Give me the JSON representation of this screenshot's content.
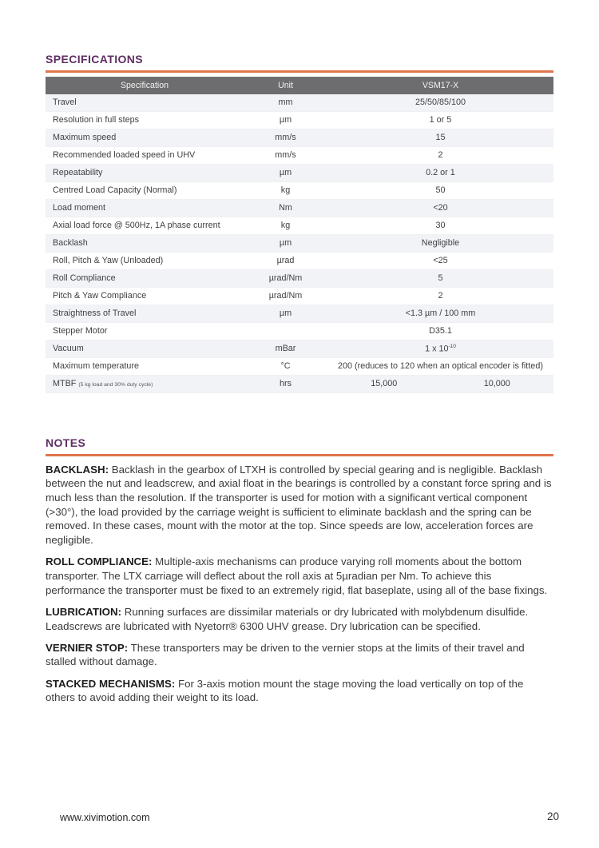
{
  "colors": {
    "accent_purple": "#5e2f62",
    "accent_orange": "#e0764b",
    "table_header_bg": "#6d6d6f",
    "row_alt_bg": "#f1f3f7"
  },
  "specifications": {
    "title": "SPECIFICATIONS",
    "table": {
      "headers": [
        "Specification",
        "Unit",
        "VSM17-X"
      ],
      "rows": [
        {
          "spec": "Travel",
          "unit": "mm",
          "value": "25/50/85/100"
        },
        {
          "spec": "Resolution in full steps",
          "unit": "µm",
          "value": "1 or 5"
        },
        {
          "spec": "Maximum speed",
          "unit": "mm/s",
          "value": "15"
        },
        {
          "spec": "Recommended loaded speed in UHV",
          "unit": "mm/s",
          "value": "2"
        },
        {
          "spec": "Repeatability",
          "unit": "µm",
          "value": "0.2 or 1"
        },
        {
          "spec": "Centred Load Capacity (Normal)",
          "unit": "kg",
          "value": "50"
        },
        {
          "spec": "Load moment",
          "unit": "Nm",
          "value": "<20"
        },
        {
          "spec": "Axial load force @ 500Hz, 1A phase current",
          "unit": "kg",
          "value": "30"
        },
        {
          "spec": "Backlash",
          "unit": "µm",
          "value": "Negligible"
        },
        {
          "spec": "Roll, Pitch & Yaw (Unloaded)",
          "unit": "µrad",
          "value": "<25"
        },
        {
          "spec": "Roll Compliance",
          "unit": "µrad/Nm",
          "value": "5"
        },
        {
          "spec": "Pitch & Yaw Compliance",
          "unit": "µrad/Nm",
          "value": "2"
        },
        {
          "spec": "Straightness of Travel",
          "unit": "µm",
          "value": "<1.3 µm / 100 mm"
        },
        {
          "spec": "Stepper Motor",
          "unit": "",
          "value": "D35.1"
        },
        {
          "spec": "Vacuum",
          "unit": "mBar",
          "value": "1 x 10",
          "value_sup": "-10"
        },
        {
          "spec": "Maximum temperature",
          "unit": "°C",
          "value": "200 (reduces to 120 when an optical encoder is fitted)"
        },
        {
          "spec": "MTBF",
          "spec_note": "(5 kg load and 30% duty cycle)",
          "unit": "hrs",
          "value": "15,000",
          "value2": "10,000"
        }
      ]
    }
  },
  "notes": {
    "title": "NOTES",
    "paragraphs": [
      {
        "label": "BACKLASH:",
        "text": "Backlash in the gearbox of LTXH is controlled by special gearing and is negligible. Backlash between the nut and leadscrew, and axial float in the bearings is controlled by a constant force spring and is much less than the resolution. If the transporter is used for motion with a significant vertical component (>30°), the load provided by the carriage weight is sufficient to eliminate backlash and the spring can be removed. In these cases, mount with the motor at the top. Since speeds are low, acceleration forces are negligible."
      },
      {
        "label": "ROLL COMPLIANCE:",
        "text": "Multiple-axis mechanisms can produce varying roll moments about the bottom transporter. The LTX carriage will deflect about the roll axis at 5µradian per Nm. To achieve this performance the transporter must be fixed to an extremely rigid, flat baseplate, using all of the base fixings."
      },
      {
        "label": "LUBRICATION:",
        "text": "Running surfaces are dissimilar materials or dry lubricated with molybdenum disulfide. Leadscrews are lubricated with Nyetorr® 6300 UHV grease. Dry lubrication can be specified."
      },
      {
        "label": "VERNIER STOP:",
        "text": "These transporters may be driven to the vernier stops at the limits of their travel and stalled without damage."
      },
      {
        "label": "STACKED MECHANISMS:",
        "text": "For 3-axis motion mount the stage moving the load vertically on top of the others to avoid adding their weight to its load."
      }
    ]
  },
  "footer": {
    "website": "www.xivimotion.com",
    "page_number": "20"
  }
}
